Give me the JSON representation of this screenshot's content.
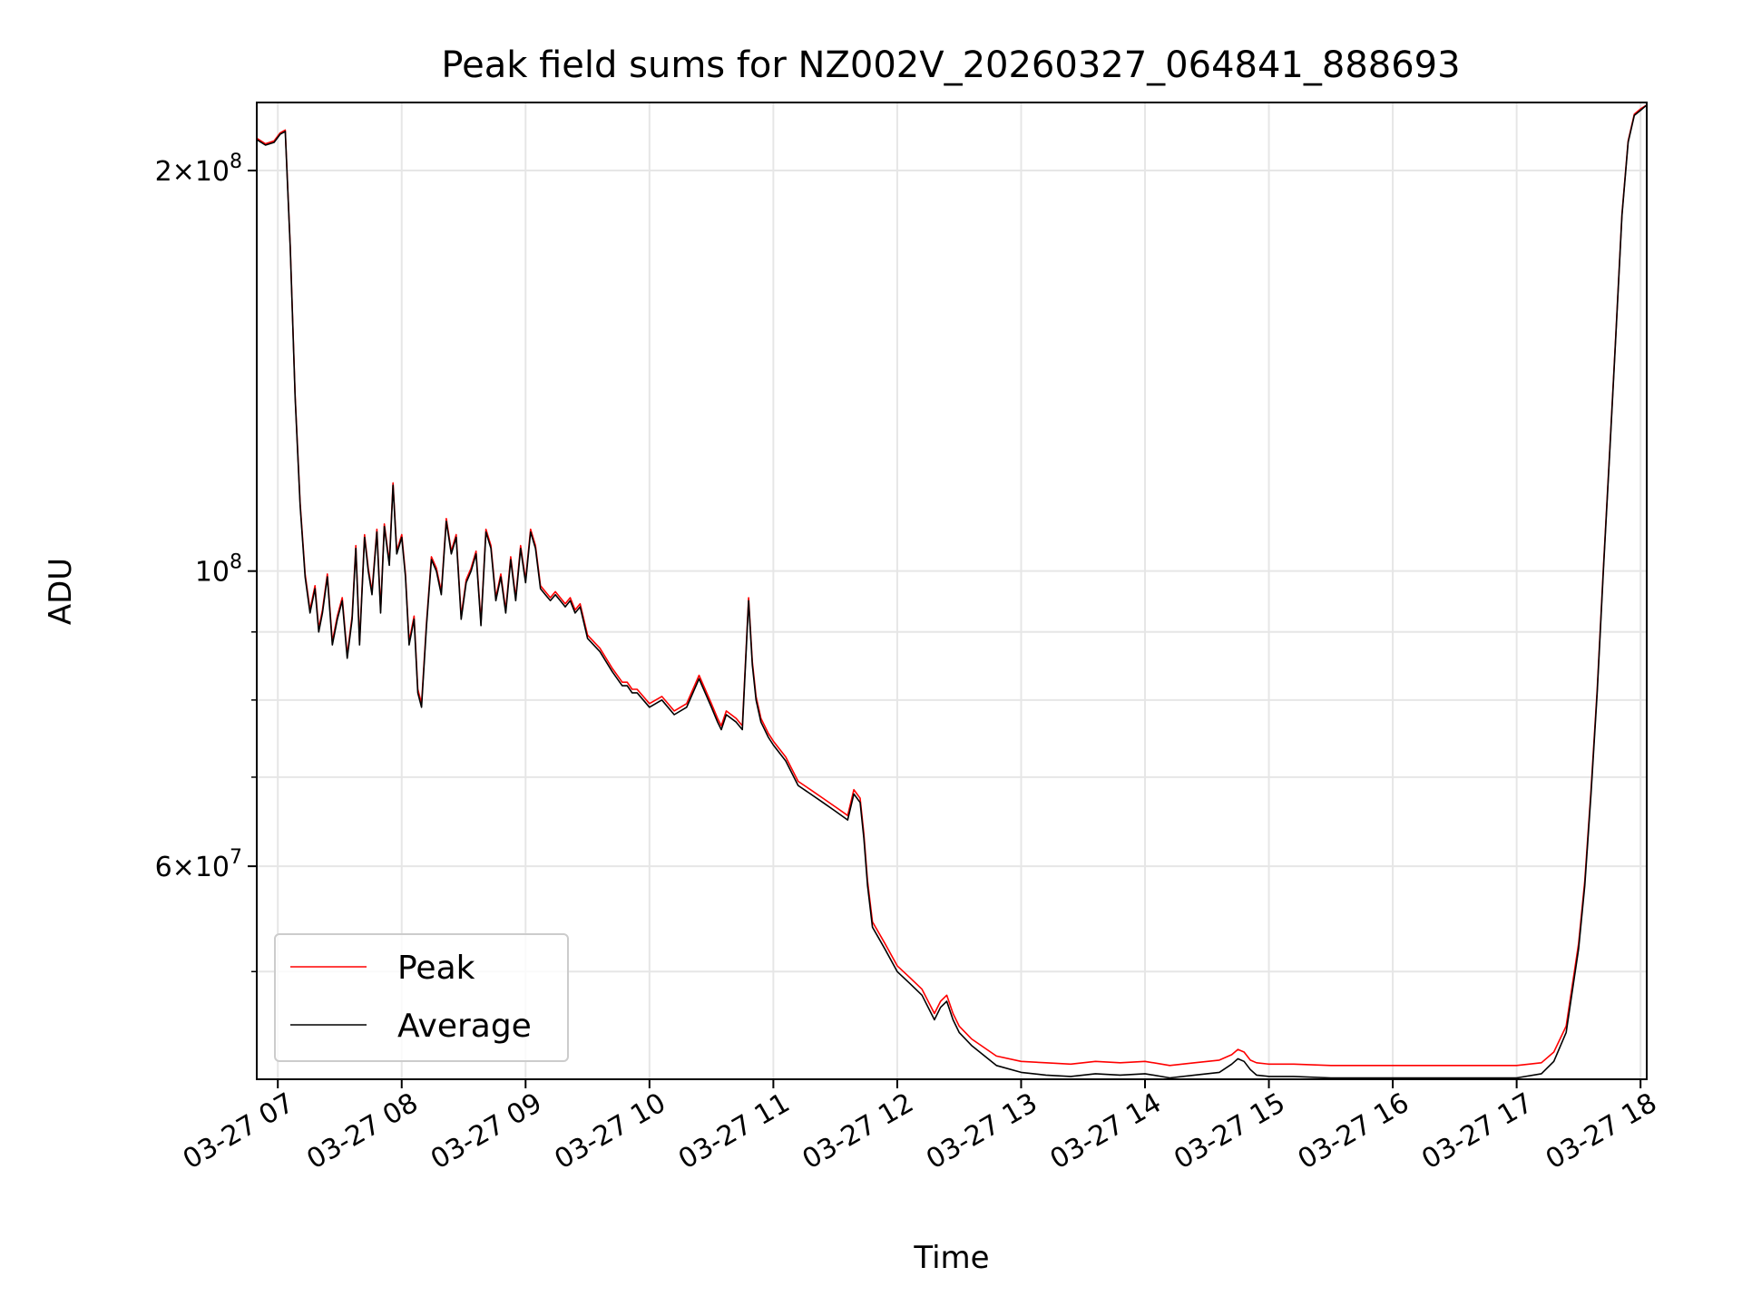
{
  "chart_data": {
    "type": "line",
    "title": "Peak field sums for NZ002V_20260327_064841_888693",
    "xlabel": "Time",
    "ylabel": "ADU",
    "yscale": "log",
    "xlim": [
      6.83,
      18.05
    ],
    "ylim": [
      41500000,
      225000000
    ],
    "grid": true,
    "x_ticks": [
      {
        "value": 7,
        "label": "03-27 07"
      },
      {
        "value": 8,
        "label": "03-27 08"
      },
      {
        "value": 9,
        "label": "03-27 09"
      },
      {
        "value": 10,
        "label": "03-27 10"
      },
      {
        "value": 11,
        "label": "03-27 11"
      },
      {
        "value": 12,
        "label": "03-27 12"
      },
      {
        "value": 13,
        "label": "03-27 13"
      },
      {
        "value": 14,
        "label": "03-27 14"
      },
      {
        "value": 15,
        "label": "03-27 15"
      },
      {
        "value": 16,
        "label": "03-27 16"
      },
      {
        "value": 17,
        "label": "03-27 17"
      },
      {
        "value": 18,
        "label": "03-27 18"
      }
    ],
    "y_major_ticks": [
      {
        "value": 200000000,
        "base": "2×10",
        "exp": "8"
      },
      {
        "value": 100000000,
        "base": "10",
        "exp": "8"
      },
      {
        "value": 60000000,
        "base": "6×10",
        "exp": "7"
      }
    ],
    "y_minor_ticks": [
      50000000,
      70000000,
      80000000,
      90000000
    ],
    "legend": {
      "position": "lower-left",
      "entries": [
        {
          "name": "Peak",
          "color": "#ff0000"
        },
        {
          "name": "Average",
          "color": "#000000"
        }
      ]
    },
    "series": [
      {
        "name": "Average",
        "color": "#000000",
        "x": [
          6.83,
          6.9,
          6.97,
          7.02,
          7.06,
          7.1,
          7.14,
          7.18,
          7.22,
          7.26,
          7.3,
          7.33,
          7.36,
          7.4,
          7.44,
          7.48,
          7.52,
          7.56,
          7.6,
          7.63,
          7.66,
          7.7,
          7.73,
          7.76,
          7.8,
          7.83,
          7.86,
          7.9,
          7.93,
          7.96,
          8.0,
          8.03,
          8.06,
          8.1,
          8.13,
          8.16,
          8.2,
          8.24,
          8.28,
          8.32,
          8.36,
          8.4,
          8.44,
          8.48,
          8.52,
          8.56,
          8.6,
          8.64,
          8.68,
          8.72,
          8.76,
          8.8,
          8.84,
          8.88,
          8.92,
          8.96,
          9.0,
          9.04,
          9.08,
          9.12,
          9.16,
          9.2,
          9.24,
          9.28,
          9.32,
          9.36,
          9.4,
          9.44,
          9.5,
          9.6,
          9.7,
          9.78,
          9.82,
          9.86,
          9.9,
          9.95,
          10.0,
          10.1,
          10.2,
          10.3,
          10.4,
          10.5,
          10.55,
          10.58,
          10.62,
          10.7,
          10.75,
          10.8,
          10.83,
          10.86,
          10.9,
          10.93,
          10.96,
          11.0,
          11.1,
          11.2,
          11.3,
          11.4,
          11.5,
          11.6,
          11.65,
          11.7,
          11.73,
          11.76,
          11.8,
          11.85,
          11.9,
          12.0,
          12.1,
          12.2,
          12.3,
          12.35,
          12.4,
          12.45,
          12.5,
          12.6,
          12.8,
          13.0,
          13.2,
          13.4,
          13.6,
          13.8,
          14.0,
          14.2,
          14.4,
          14.6,
          14.7,
          14.75,
          14.8,
          14.85,
          14.9,
          15.0,
          15.2,
          15.5,
          16.0,
          16.5,
          17.0,
          17.2,
          17.3,
          17.4,
          17.5,
          17.55,
          17.6,
          17.65,
          17.7,
          17.75,
          17.8,
          17.85,
          17.9,
          17.95,
          18.0,
          18.05
        ],
        "y": [
          211000000,
          209000000,
          210000000,
          213000000,
          214000000,
          175000000,
          135000000,
          112000000,
          99000000,
          93000000,
          97000000,
          90000000,
          93000000,
          99000000,
          88000000,
          92000000,
          95000000,
          86000000,
          92000000,
          104000000,
          88000000,
          106000000,
          100000000,
          96000000,
          107000000,
          93000000,
          108000000,
          101000000,
          116000000,
          103000000,
          106000000,
          99000000,
          88000000,
          92000000,
          81000000,
          79000000,
          91000000,
          102000000,
          100000000,
          96000000,
          109000000,
          103000000,
          106000000,
          92000000,
          98000000,
          100000000,
          103000000,
          91000000,
          107000000,
          104000000,
          95000000,
          99000000,
          93000000,
          102000000,
          95000000,
          104000000,
          98000000,
          107000000,
          104000000,
          97000000,
          96000000,
          95000000,
          96000000,
          95000000,
          94000000,
          95000000,
          93000000,
          94000000,
          89000000,
          87000000,
          84000000,
          82000000,
          82000000,
          81000000,
          81000000,
          80000000,
          79000000,
          80000000,
          78000000,
          79000000,
          83000000,
          79000000,
          77000000,
          76000000,
          78000000,
          77000000,
          76000000,
          95000000,
          85000000,
          80000000,
          77000000,
          76000000,
          75000000,
          74000000,
          72000000,
          69000000,
          68000000,
          67000000,
          66000000,
          65000000,
          68000000,
          67000000,
          63000000,
          58000000,
          54000000,
          53000000,
          52000000,
          50000000,
          49000000,
          48000000,
          46000000,
          47000000,
          47500000,
          46000000,
          45000000,
          44000000,
          42500000,
          42000000,
          41800000,
          41700000,
          41900000,
          41800000,
          41900000,
          41600000,
          41800000,
          42000000,
          42600000,
          43000000,
          42800000,
          42200000,
          41800000,
          41700000,
          41700000,
          41600000,
          41600000,
          41600000,
          41600000,
          41900000,
          42800000,
          45000000,
          52000000,
          58000000,
          68000000,
          81000000,
          100000000,
          122000000,
          150000000,
          185000000,
          210000000,
          220000000,
          222000000,
          224000000
        ]
      },
      {
        "name": "Peak",
        "color": "#ff0000",
        "x": [
          6.83,
          6.9,
          6.97,
          7.02,
          7.06,
          7.1,
          7.14,
          7.18,
          7.22,
          7.26,
          7.3,
          7.33,
          7.36,
          7.4,
          7.44,
          7.48,
          7.52,
          7.56,
          7.6,
          7.63,
          7.66,
          7.7,
          7.73,
          7.76,
          7.8,
          7.83,
          7.86,
          7.9,
          7.93,
          7.96,
          8.0,
          8.03,
          8.06,
          8.1,
          8.13,
          8.16,
          8.2,
          8.24,
          8.28,
          8.32,
          8.36,
          8.4,
          8.44,
          8.48,
          8.52,
          8.56,
          8.6,
          8.64,
          8.68,
          8.72,
          8.76,
          8.8,
          8.84,
          8.88,
          8.92,
          8.96,
          9.0,
          9.04,
          9.08,
          9.12,
          9.16,
          9.2,
          9.24,
          9.28,
          9.32,
          9.36,
          9.4,
          9.44,
          9.5,
          9.6,
          9.7,
          9.78,
          9.82,
          9.86,
          9.9,
          9.95,
          10.0,
          10.1,
          10.2,
          10.3,
          10.4,
          10.5,
          10.55,
          10.58,
          10.62,
          10.7,
          10.75,
          10.8,
          10.83,
          10.86,
          10.9,
          10.93,
          10.96,
          11.0,
          11.1,
          11.2,
          11.3,
          11.4,
          11.5,
          11.6,
          11.65,
          11.7,
          11.73,
          11.76,
          11.8,
          11.85,
          11.9,
          12.0,
          12.1,
          12.2,
          12.3,
          12.35,
          12.4,
          12.45,
          12.5,
          12.6,
          12.8,
          13.0,
          13.2,
          13.4,
          13.6,
          13.8,
          14.0,
          14.2,
          14.4,
          14.6,
          14.7,
          14.75,
          14.8,
          14.85,
          14.9,
          15.0,
          15.2,
          15.5,
          16.0,
          16.5,
          17.0,
          17.2,
          17.3,
          17.4,
          17.5,
          17.55,
          17.6,
          17.65,
          17.7,
          17.75,
          17.8,
          17.85,
          17.9,
          17.95,
          18.0,
          18.05
        ],
        "y": [
          211500000,
          209500000,
          210500000,
          213500000,
          214500000,
          175500000,
          135500000,
          112500000,
          99500000,
          93500000,
          97500000,
          90500000,
          93500000,
          99500000,
          88500000,
          92500000,
          95500000,
          86500000,
          92500000,
          104500000,
          88500000,
          106500000,
          100500000,
          96500000,
          107500000,
          93500000,
          108500000,
          101500000,
          116500000,
          103500000,
          106500000,
          99500000,
          88500000,
          92500000,
          81500000,
          79500000,
          91500000,
          102500000,
          100500000,
          96500000,
          109500000,
          103500000,
          106500000,
          92500000,
          98500000,
          100500000,
          103500000,
          91500000,
          107500000,
          104500000,
          95500000,
          99500000,
          93500000,
          102500000,
          95500000,
          104500000,
          98500000,
          107500000,
          104500000,
          97500000,
          96500000,
          95500000,
          96500000,
          95500000,
          94500000,
          95500000,
          93500000,
          94500000,
          89500000,
          87500000,
          84500000,
          82500000,
          82500000,
          81500000,
          81500000,
          80500000,
          79500000,
          80500000,
          78500000,
          79500000,
          83500000,
          79500000,
          77500000,
          76500000,
          78500000,
          77500000,
          76500000,
          95500000,
          85500000,
          80500000,
          77500000,
          76500000,
          75500000,
          74500000,
          72500000,
          69500000,
          68500000,
          67500000,
          66500000,
          65500000,
          68500000,
          67500000,
          63500000,
          58500000,
          54500000,
          53500000,
          52500000,
          50500000,
          49500000,
          48500000,
          46500000,
          47500000,
          48000000,
          46500000,
          45500000,
          44500000,
          43200000,
          42800000,
          42700000,
          42600000,
          42800000,
          42700000,
          42800000,
          42500000,
          42700000,
          42900000,
          43300000,
          43700000,
          43500000,
          42900000,
          42700000,
          42600000,
          42600000,
          42500000,
          42500000,
          42500000,
          42500000,
          42700000,
          43500000,
          45500000,
          52500000,
          58500000,
          68500000,
          81500000,
          100500000,
          122500000,
          150500000,
          185500000,
          210500000,
          220500000,
          222500000,
          224000000
        ]
      }
    ]
  }
}
